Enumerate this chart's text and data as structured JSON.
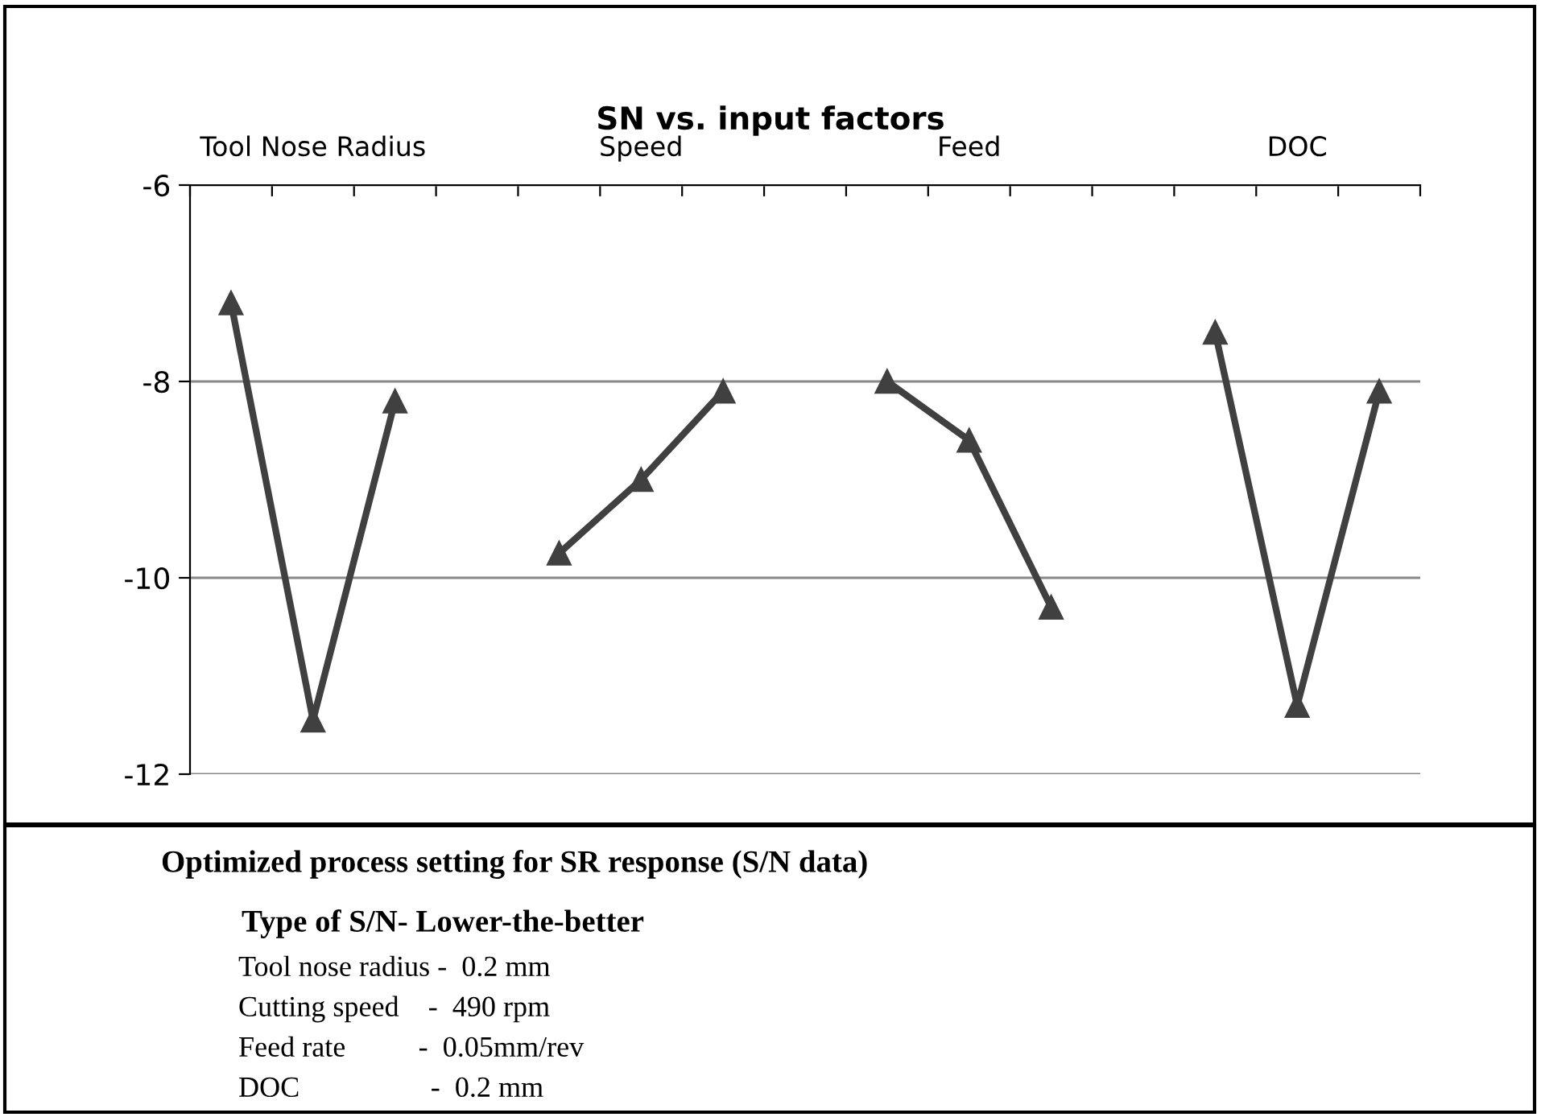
{
  "chart_data": {
    "type": "line",
    "title": "SN vs. input factors",
    "categories": [
      null,
      null,
      null,
      null,
      null,
      null,
      null,
      null,
      null,
      null,
      null,
      null,
      null,
      null,
      null
    ],
    "series": [
      {
        "color": "#404040",
        "values": [
          -7.2,
          -11.45,
          -8.2,
          null,
          -9.75,
          -9.0,
          -8.1,
          null,
          -8.0,
          -8.6,
          -10.3,
          null,
          -7.5,
          -11.3,
          -8.1
        ]
      }
    ],
    "ylim": [
      -12,
      -6
    ],
    "yticks": [
      -12,
      -10,
      -8,
      -6
    ],
    "grid": "y",
    "marker": "triangle",
    "line_style": "solid",
    "legend": false,
    "tick_labels": "y",
    "annotations": [
      "Tool Nose Radius",
      "Speed",
      "Feed",
      "DOC",
      "Optimized process setting for SR response (S/N data)",
      "Type of S/N- Lower-the-better",
      "Tool nose radius -  0.2 mm",
      "Cutting speed    -  490 rpm",
      "Feed rate          -  0.05mm/rev",
      "DOC                  -  0.2 mm"
    ]
  }
}
